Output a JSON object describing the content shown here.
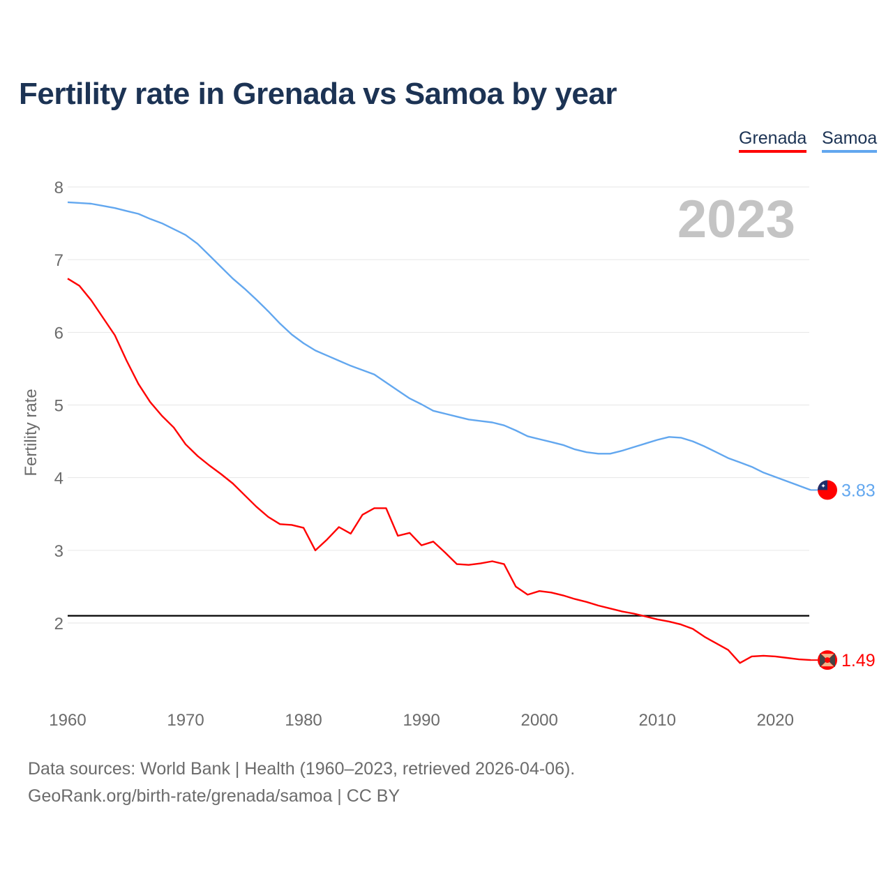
{
  "chart_data": {
    "type": "line",
    "title": "Fertility rate in Grenada vs Samoa by year",
    "xlabel": "",
    "ylabel": "Fertility rate",
    "xlim": [
      1960,
      2023
    ],
    "ylim": [
      1,
      8
    ],
    "yticks": [
      2,
      3,
      4,
      5,
      6,
      7,
      8
    ],
    "xticks": [
      1960,
      1970,
      1980,
      1990,
      2000,
      2010,
      2020
    ],
    "grid": true,
    "legend_position": "top-right",
    "year_label": "2023",
    "reference_line": {
      "value": 2.1,
      "color": "#000000"
    },
    "x": [
      1960,
      1961,
      1962,
      1963,
      1964,
      1965,
      1966,
      1967,
      1968,
      1969,
      1970,
      1971,
      1972,
      1973,
      1974,
      1975,
      1976,
      1977,
      1978,
      1979,
      1980,
      1981,
      1982,
      1983,
      1984,
      1985,
      1986,
      1987,
      1988,
      1989,
      1990,
      1991,
      1992,
      1993,
      1994,
      1995,
      1996,
      1997,
      1998,
      1999,
      2000,
      2001,
      2002,
      2003,
      2004,
      2005,
      2006,
      2007,
      2008,
      2009,
      2010,
      2011,
      2012,
      2013,
      2014,
      2015,
      2016,
      2017,
      2018,
      2019,
      2020,
      2021,
      2022,
      2023
    ],
    "series": [
      {
        "name": "Grenada",
        "color": "#ff0000",
        "end_label": "1.49",
        "flag": "grenada-flag",
        "values": [
          6.74,
          6.64,
          6.44,
          6.2,
          5.96,
          5.61,
          5.29,
          5.04,
          4.85,
          4.69,
          4.46,
          4.3,
          4.17,
          4.05,
          3.92,
          3.76,
          3.6,
          3.46,
          3.36,
          3.35,
          3.31,
          3.0,
          3.15,
          3.32,
          3.23,
          3.49,
          3.58,
          3.58,
          3.2,
          3.24,
          3.07,
          3.12,
          2.97,
          2.81,
          2.8,
          2.82,
          2.85,
          2.81,
          2.5,
          2.39,
          2.44,
          2.42,
          2.38,
          2.33,
          2.29,
          2.24,
          2.2,
          2.16,
          2.13,
          2.09,
          2.05,
          2.02,
          1.98,
          1.92,
          1.81,
          1.72,
          1.63,
          1.45,
          1.54,
          1.55,
          1.54,
          1.52,
          1.5,
          1.49
        ]
      },
      {
        "name": "Samoa",
        "color": "#62a7ef",
        "end_label": "3.83",
        "flag": "samoa-flag",
        "values": [
          7.79,
          7.78,
          7.77,
          7.74,
          7.71,
          7.67,
          7.63,
          7.56,
          7.5,
          7.42,
          7.34,
          7.22,
          7.06,
          6.9,
          6.74,
          6.6,
          6.45,
          6.29,
          6.12,
          5.97,
          5.85,
          5.75,
          5.68,
          5.61,
          5.54,
          5.48,
          5.42,
          5.31,
          5.2,
          5.09,
          5.01,
          4.92,
          4.88,
          4.84,
          4.8,
          4.78,
          4.76,
          4.72,
          4.65,
          4.57,
          4.53,
          4.49,
          4.45,
          4.39,
          4.35,
          4.33,
          4.33,
          4.37,
          4.42,
          4.47,
          4.52,
          4.56,
          4.55,
          4.5,
          4.43,
          4.35,
          4.27,
          4.21,
          4.15,
          4.07,
          4.01,
          3.95,
          3.89,
          3.83
        ]
      }
    ]
  },
  "footer": {
    "line1": "Data sources: World Bank | Health (1960–2023, retrieved 2026-04-06).",
    "line2": "GeoRank.org/birth-rate/grenada/samoa | CC BY"
  }
}
